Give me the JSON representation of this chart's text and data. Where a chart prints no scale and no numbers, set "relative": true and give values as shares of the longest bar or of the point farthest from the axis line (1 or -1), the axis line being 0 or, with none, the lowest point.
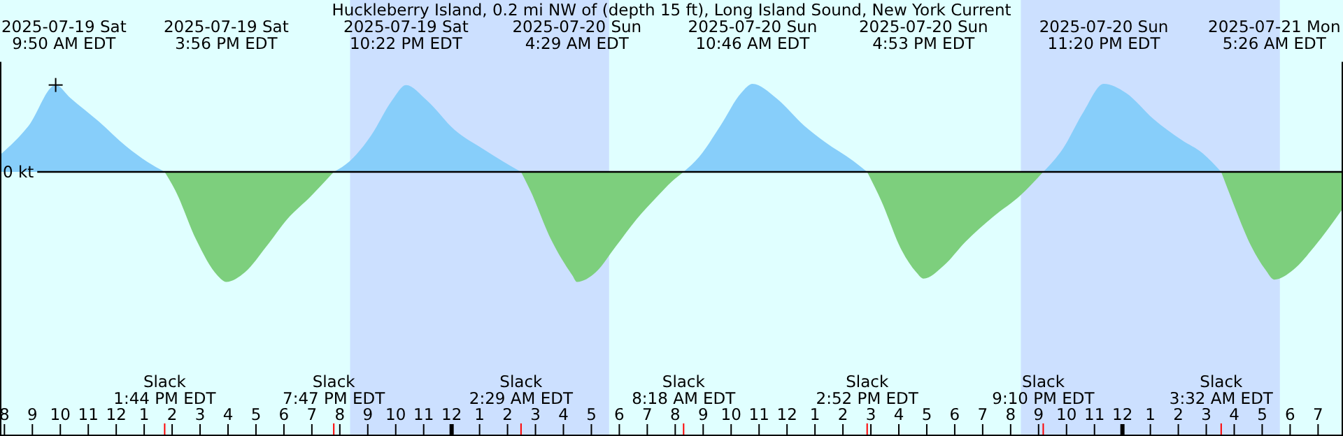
{
  "chart_data": {
    "type": "area",
    "relative": true,
    "title": "Huckleberry Island, 0.2 mi NW of (depth 15 ft), Long Island Sound, New York Current",
    "x": [
      "2025-07-19T07:52",
      "2025-07-19T08:52",
      "2025-07-19T09:50",
      "2025-07-19T10:22",
      "2025-07-19T11:22",
      "2025-07-19T12:22",
      "2025-07-19T13:07",
      "2025-07-19T13:44",
      "2025-07-19T14:07",
      "2025-07-19T14:52",
      "2025-07-19T15:37",
      "2025-07-19T15:56",
      "2025-07-19T16:37",
      "2025-07-19T17:22",
      "2025-07-19T18:07",
      "2025-07-19T18:58",
      "2025-07-19T19:47",
      "2025-07-19T20:22",
      "2025-07-19T21:07",
      "2025-07-19T21:52",
      "2025-07-19T22:22",
      "2025-07-19T23:07",
      "2025-07-20T00:07",
      "2025-07-20T01:07",
      "2025-07-20T01:52",
      "2025-07-20T02:29",
      "2025-07-20T02:49",
      "2025-07-20T03:34",
      "2025-07-20T04:19",
      "2025-07-20T04:29",
      "2025-07-20T05:10",
      "2025-07-20T05:52",
      "2025-07-20T06:37",
      "2025-07-20T07:22",
      "2025-07-20T07:52",
      "2025-07-20T08:18",
      "2025-07-20T08:52",
      "2025-07-20T09:37",
      "2025-07-20T10:22",
      "2025-07-20T10:46",
      "2025-07-20T11:37",
      "2025-07-20T12:37",
      "2025-07-20T13:22",
      "2025-07-20T14:22",
      "2025-07-20T14:52",
      "2025-07-20T15:22",
      "2025-07-20T16:07",
      "2025-07-20T16:37",
      "2025-07-20T16:53",
      "2025-07-20T17:37",
      "2025-07-20T18:22",
      "2025-07-20T19:22",
      "2025-07-20T20:22",
      "2025-07-20T21:10",
      "2025-07-20T21:52",
      "2025-07-20T22:37",
      "2025-07-20T23:20",
      "2025-07-21T00:07",
      "2025-07-21T01:07",
      "2025-07-21T02:07",
      "2025-07-21T02:52",
      "2025-07-21T03:32",
      "2025-07-21T03:52",
      "2025-07-21T04:37",
      "2025-07-21T05:07",
      "2025-07-21T05:26",
      "2025-07-21T06:07",
      "2025-07-21T06:52",
      "2025-07-21T07:52"
    ],
    "series": [
      {
        "color": "#87cefa",
        "values": [
          0.16,
          0.42,
          0.79,
          0.67,
          0.46,
          0.23,
          0.09,
          0,
          null,
          null,
          null,
          null,
          null,
          null,
          null,
          null,
          0,
          0.1,
          0.33,
          0.65,
          0.79,
          0.65,
          0.38,
          0.21,
          0.09,
          0,
          null,
          null,
          null,
          null,
          null,
          null,
          null,
          null,
          null,
          0,
          0.14,
          0.42,
          0.72,
          0.8,
          0.67,
          0.42,
          0.27,
          0.1,
          0,
          null,
          null,
          null,
          null,
          null,
          null,
          null,
          null,
          0,
          0.21,
          0.55,
          0.8,
          0.72,
          0.48,
          0.29,
          0.17,
          0,
          null,
          null,
          null,
          null,
          null,
          null,
          null
        ]
      },
      {
        "color": "#7dcf7d",
        "values": [
          null,
          null,
          null,
          null,
          null,
          null,
          null,
          0,
          -0.17,
          -0.62,
          -0.94,
          -1,
          -0.91,
          -0.68,
          -0.43,
          -0.22,
          0,
          null,
          null,
          null,
          null,
          null,
          null,
          null,
          null,
          0,
          -0.17,
          -0.62,
          -0.94,
          -1,
          -0.91,
          -0.68,
          -0.43,
          -0.22,
          -0.09,
          0,
          null,
          null,
          null,
          null,
          null,
          null,
          null,
          null,
          0,
          -0.26,
          -0.72,
          -0.91,
          -0.97,
          -0.85,
          -0.64,
          -0.41,
          -0.21,
          0,
          null,
          null,
          null,
          null,
          null,
          null,
          null,
          0,
          -0.22,
          -0.68,
          -0.89,
          -0.98,
          -0.89,
          -0.68,
          -0.34
        ]
      }
    ],
    "xticks": [
      {
        "value": "2025-07-19T08:00",
        "label": "8"
      },
      {
        "value": "2025-07-19T09:00",
        "label": "9"
      },
      {
        "value": "2025-07-19T10:00",
        "label": "10"
      },
      {
        "value": "2025-07-19T11:00",
        "label": "11"
      },
      {
        "value": "2025-07-19T12:00",
        "label": "12"
      },
      {
        "value": "2025-07-19T13:00",
        "label": "1"
      },
      {
        "value": "2025-07-19T14:00",
        "label": "2"
      },
      {
        "value": "2025-07-19T15:00",
        "label": "3"
      },
      {
        "value": "2025-07-19T16:00",
        "label": "4"
      },
      {
        "value": "2025-07-19T17:00",
        "label": "5"
      },
      {
        "value": "2025-07-19T18:00",
        "label": "6"
      },
      {
        "value": "2025-07-19T19:00",
        "label": "7"
      },
      {
        "value": "2025-07-19T20:00",
        "label": "8"
      },
      {
        "value": "2025-07-19T21:00",
        "label": "9"
      },
      {
        "value": "2025-07-19T22:00",
        "label": "10"
      },
      {
        "value": "2025-07-19T23:00",
        "label": "11"
      },
      {
        "value": "2025-07-20T00:00",
        "label": "12"
      },
      {
        "value": "2025-07-20T01:00",
        "label": "1"
      },
      {
        "value": "2025-07-20T02:00",
        "label": "2"
      },
      {
        "value": "2025-07-20T03:00",
        "label": "3"
      },
      {
        "value": "2025-07-20T04:00",
        "label": "4"
      },
      {
        "value": "2025-07-20T05:00",
        "label": "5"
      },
      {
        "value": "2025-07-20T06:00",
        "label": "6"
      },
      {
        "value": "2025-07-20T07:00",
        "label": "7"
      },
      {
        "value": "2025-07-20T08:00",
        "label": "8"
      },
      {
        "value": "2025-07-20T09:00",
        "label": "9"
      },
      {
        "value": "2025-07-20T10:00",
        "label": "10"
      },
      {
        "value": "2025-07-20T11:00",
        "label": "11"
      },
      {
        "value": "2025-07-20T12:00",
        "label": "12"
      },
      {
        "value": "2025-07-20T13:00",
        "label": "1"
      },
      {
        "value": "2025-07-20T14:00",
        "label": "2"
      },
      {
        "value": "2025-07-20T15:00",
        "label": "3"
      },
      {
        "value": "2025-07-20T16:00",
        "label": "4"
      },
      {
        "value": "2025-07-20T17:00",
        "label": "5"
      },
      {
        "value": "2025-07-20T18:00",
        "label": "6"
      },
      {
        "value": "2025-07-20T19:00",
        "label": "7"
      },
      {
        "value": "2025-07-20T20:00",
        "label": "8"
      },
      {
        "value": "2025-07-20T21:00",
        "label": "9"
      },
      {
        "value": "2025-07-20T22:00",
        "label": "10"
      },
      {
        "value": "2025-07-20T23:00",
        "label": "11"
      },
      {
        "value": "2025-07-21T00:00",
        "label": "12"
      },
      {
        "value": "2025-07-21T01:00",
        "label": "1"
      },
      {
        "value": "2025-07-21T02:00",
        "label": "2"
      },
      {
        "value": "2025-07-21T03:00",
        "label": "3"
      },
      {
        "value": "2025-07-21T04:00",
        "label": "4"
      },
      {
        "value": "2025-07-21T05:00",
        "label": "5"
      },
      {
        "value": "2025-07-21T06:00",
        "label": "6"
      },
      {
        "value": "2025-07-21T07:00",
        "label": "7"
      }
    ],
    "xlim": [
      "2025-07-19T07:52",
      "2025-07-21T07:52"
    ],
    "bands": [
      {
        "axis": "x",
        "from": "2025-07-19T20:22",
        "to": "2025-07-20T05:38",
        "color": "#cce0ff"
      },
      {
        "axis": "x",
        "from": "2025-07-20T20:22",
        "to": "2025-07-21T05:38",
        "color": "#cce0ff"
      }
    ],
    "ref_lines": [
      {
        "axis": "y",
        "value": 0,
        "label": "0 kt",
        "color": "#000000"
      }
    ],
    "annotations": [
      "2025-07-19 Sat\n9:50 AM EDT",
      "2025-07-19 Sat\n3:56 PM EDT",
      "2025-07-19 Sat\n10:22 PM EDT",
      "2025-07-20 Sun\n4:29 AM EDT",
      "2025-07-20 Sun\n10:46 AM EDT",
      "2025-07-20 Sun\n4:53 PM EDT",
      "2025-07-20 Sun\n11:20 PM EDT",
      "2025-07-21 Mon\n5:26 AM EDT",
      {
        "text": "Slack\n1:44 PM EDT",
        "x": "2025-07-19T13:44"
      },
      {
        "text": "Slack\n7:47 PM EDT",
        "x": "2025-07-19T19:47"
      },
      {
        "text": "Slack\n2:29 AM EDT",
        "x": "2025-07-20T02:29"
      },
      {
        "text": "Slack\n8:18 AM EDT",
        "x": "2025-07-20T08:18"
      },
      {
        "text": "Slack\n2:52 PM EDT",
        "x": "2025-07-20T14:52"
      },
      {
        "text": "Slack\n9:10 PM EDT",
        "x": "2025-07-20T21:10"
      },
      {
        "text": "Slack\n3:32 AM EDT",
        "x": "2025-07-21T03:32"
      }
    ],
    "legend": false
  }
}
